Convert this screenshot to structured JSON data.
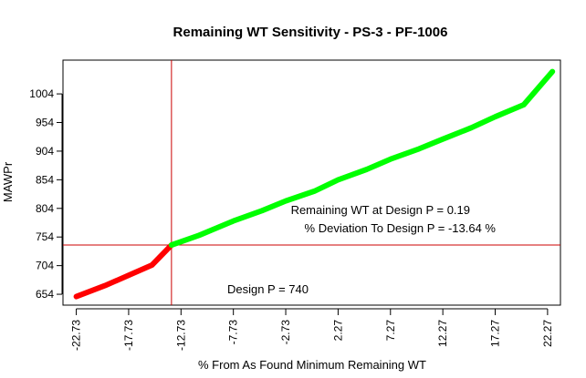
{
  "chart_data": {
    "type": "line",
    "title": "Remaining WT Sensitivity - PS-3 - PF-1006",
    "xlabel": "% From As Found Minimum Remaining WT",
    "ylabel": "MAWPr",
    "x_ticks": [
      "-22.73",
      "-17.73",
      "-12.73",
      "-7.73",
      "-2.73",
      "2.27",
      "7.27",
      "12.27",
      "17.27",
      "22.27"
    ],
    "y_ticks": [
      "654",
      "704",
      "754",
      "804",
      "854",
      "904",
      "954",
      "1004"
    ],
    "xlim": [
      -24.0,
      23.5
    ],
    "ylim": [
      635,
      1063
    ],
    "series": [
      {
        "color": "#ff0000",
        "x": [
          -22.73,
          -20.0,
          -17.73,
          -15.5,
          -13.64
        ],
        "y": [
          650,
          669,
          687,
          705,
          740
        ]
      },
      {
        "color": "#00ff00",
        "x": [
          -13.64,
          -11.0,
          -7.73,
          -5.0,
          -2.73,
          0.0,
          2.27,
          5.0,
          7.27,
          10.0,
          12.27,
          15.0,
          17.27,
          20.0,
          22.73
        ],
        "y": [
          740,
          757,
          782,
          800,
          817,
          834,
          854,
          872,
          890,
          908,
          925,
          945,
          964,
          985,
          1043
        ]
      }
    ],
    "vline": {
      "x": -13.64,
      "color": "#cc0000"
    },
    "hline": {
      "y": 740,
      "color": "#cc0000"
    },
    "annotations": {
      "remaining_wt": "Remaining WT at Design P = 0.19",
      "deviation": "% Deviation To Design P = -13.64 %",
      "design_p": "Design P = 740"
    },
    "grid": false
  }
}
